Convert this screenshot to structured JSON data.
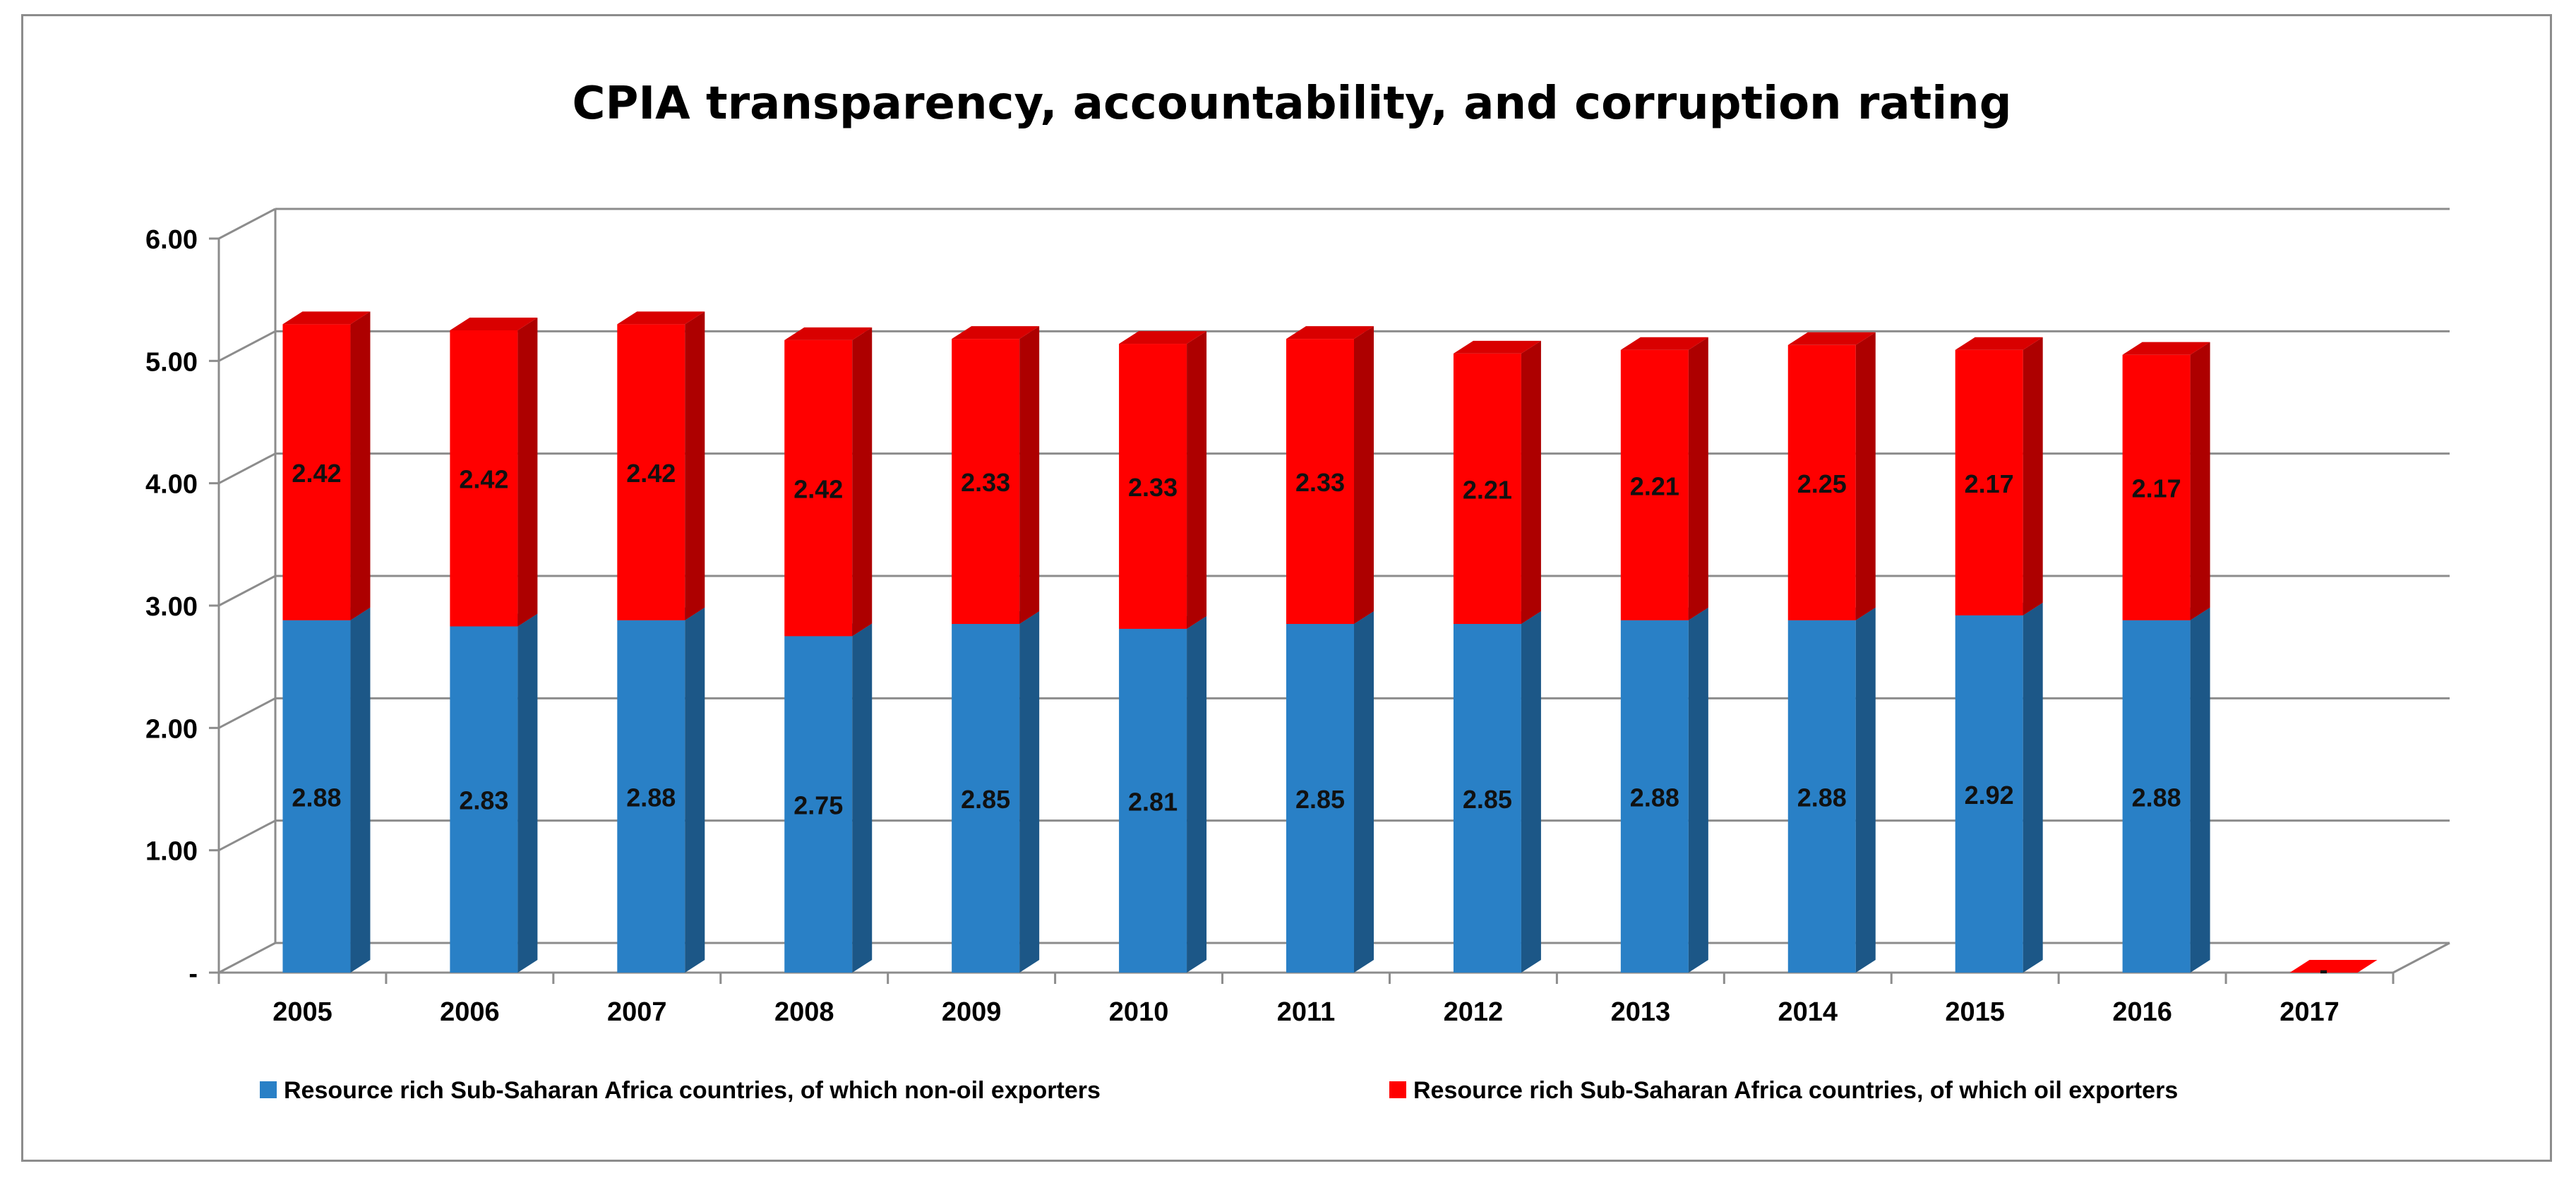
{
  "chart_data": {
    "type": "bar",
    "stacked": true,
    "title": "CPIA transparency, accountability, and corruption rating",
    "xlabel": "",
    "ylabel": "",
    "ylim": [
      0,
      6
    ],
    "yticks": [
      "-",
      "1.00",
      "2.00",
      "3.00",
      "4.00",
      "5.00",
      "6.00"
    ],
    "grid": true,
    "legend_position": "bottom",
    "categories": [
      "2005",
      "2006",
      "2007",
      "2008",
      "2009",
      "2010",
      "2011",
      "2012",
      "2013",
      "2014",
      "2015",
      "2016",
      "2017"
    ],
    "series": [
      {
        "name": "Resource rich Sub-Saharan Africa countries, of which non-oil exporters",
        "color": "#2980c6",
        "values": [
          2.88,
          2.83,
          2.88,
          2.75,
          2.85,
          2.81,
          2.85,
          2.85,
          2.88,
          2.88,
          2.92,
          2.88,
          0
        ],
        "labels": [
          "2.88",
          "2.83",
          "2.88",
          "2.75",
          "2.85",
          "2.81",
          "2.85",
          "2.85",
          "2.88",
          "2.88",
          "2.92",
          "2.88",
          ""
        ]
      },
      {
        "name": "Resource rich Sub-Saharan Africa countries, of which oil exporters",
        "color": "#ff0000",
        "values": [
          2.42,
          2.42,
          2.42,
          2.42,
          2.33,
          2.33,
          2.33,
          2.21,
          2.21,
          2.25,
          2.17,
          2.17,
          0
        ],
        "labels": [
          "2.42",
          "2.42",
          "2.42",
          "2.42",
          "2.33",
          "2.33",
          "2.33",
          "2.21",
          "2.21",
          "2.25",
          "2.17",
          "2.17",
          "-"
        ]
      }
    ]
  }
}
